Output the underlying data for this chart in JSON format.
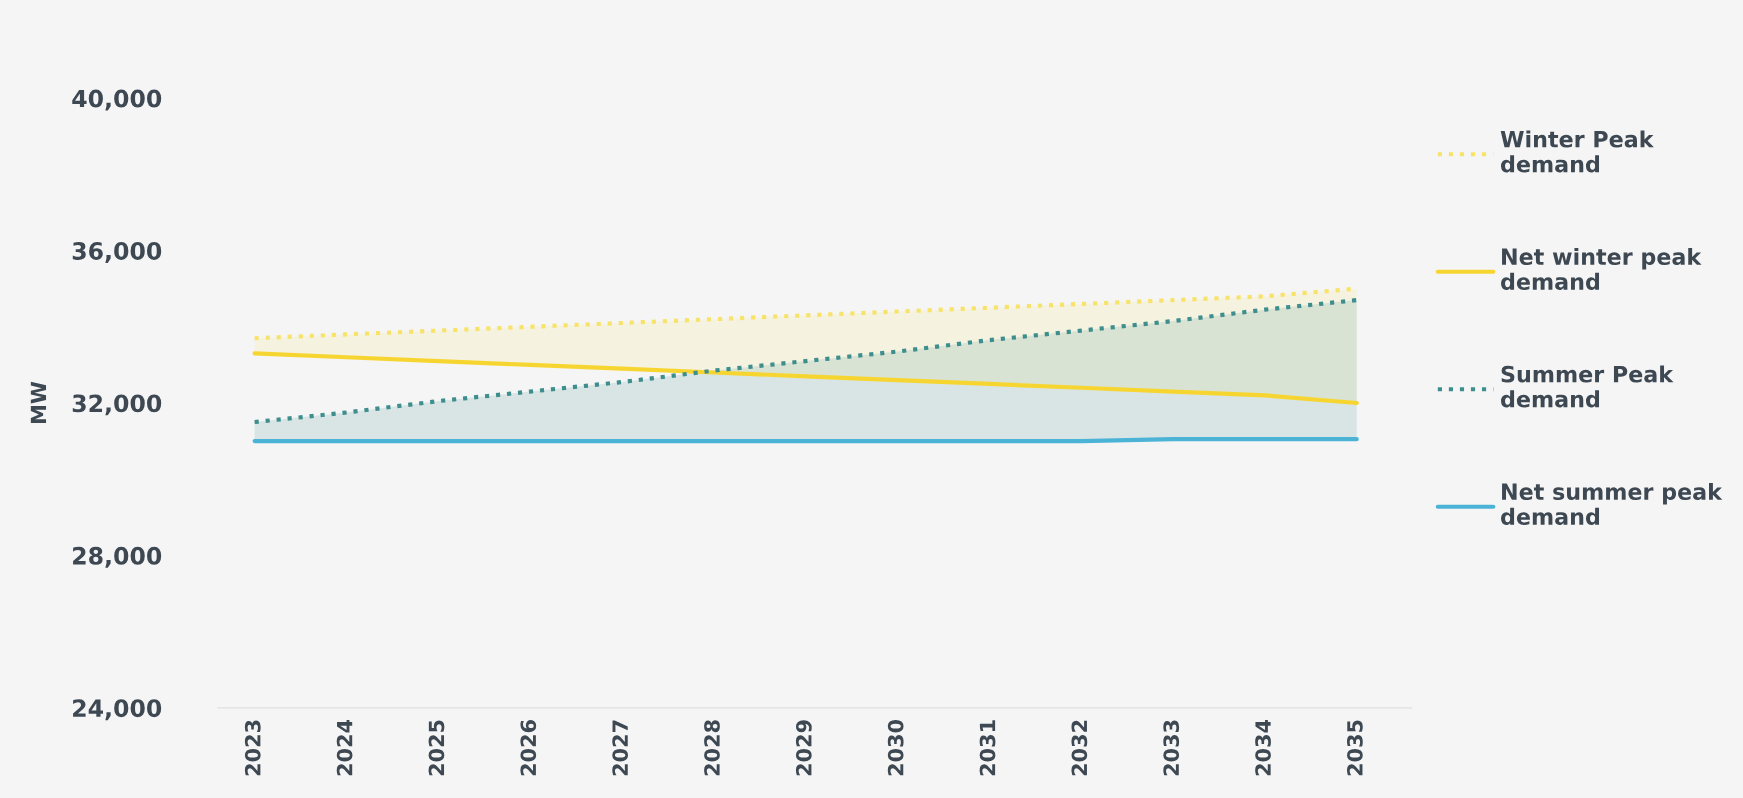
{
  "chart_data": {
    "type": "line",
    "ylabel": "MW",
    "categories": [
      "2023",
      "2024",
      "2025",
      "2026",
      "2027",
      "2028",
      "2029",
      "2030",
      "2031",
      "2032",
      "2033",
      "2034",
      "2035"
    ],
    "series": [
      {
        "name": "Winter Peak\ndemand",
        "color": "#f7e36a",
        "line_style": "dotted",
        "values": [
          33700,
          33800,
          33900,
          34000,
          34100,
          34200,
          34300,
          34400,
          34500,
          34600,
          34700,
          34800,
          35000
        ],
        "lower": [
          33300,
          33200,
          33100,
          33000,
          32900,
          32800,
          32700,
          32600,
          32500,
          32400,
          32300,
          32200,
          32000
        ],
        "upper": [
          33700,
          33800,
          33900,
          34000,
          34100,
          34200,
          34300,
          34400,
          34500,
          34600,
          34700,
          34800,
          35000
        ]
      },
      {
        "name": "Net winter peak\ndemand",
        "color": "#f7d531",
        "line_style": "solid",
        "values": [
          33300,
          33200,
          33100,
          33000,
          32900,
          32800,
          32700,
          32600,
          32500,
          32400,
          32300,
          32200,
          32000
        ]
      },
      {
        "name": "Summer Peak\ndemand",
        "color": "#3e8e8e",
        "line_style": "dotted",
        "values": [
          31500,
          31750,
          32050,
          32300,
          32550,
          32850,
          33100,
          33350,
          33650,
          33900,
          34150,
          34450,
          34700
        ],
        "lower": [
          31000,
          31000,
          31000,
          31000,
          31000,
          31000,
          31000,
          31000,
          31000,
          31000,
          31050,
          31050,
          31050
        ],
        "upper": [
          31500,
          31750,
          32050,
          32300,
          32550,
          32850,
          33100,
          33350,
          33650,
          33900,
          34150,
          34450,
          34700
        ]
      },
      {
        "name": "Net summer peak\ndemand",
        "color": "#4bb3d6",
        "line_style": "solid",
        "values": [
          31000,
          31000,
          31000,
          31000,
          31000,
          31000,
          31000,
          31000,
          31000,
          31000,
          31050,
          31050,
          31050
        ]
      }
    ],
    "ylim": [
      24000,
      40000
    ],
    "yticks": [
      {
        "value": 24000,
        "label": "24,000"
      },
      {
        "value": 28000,
        "label": "28,000"
      },
      {
        "value": 32000,
        "label": "32,000"
      },
      {
        "value": 36000,
        "label": "36,000"
      },
      {
        "value": 40000,
        "label": "40,000"
      }
    ],
    "grid": false,
    "legend": "right"
  }
}
